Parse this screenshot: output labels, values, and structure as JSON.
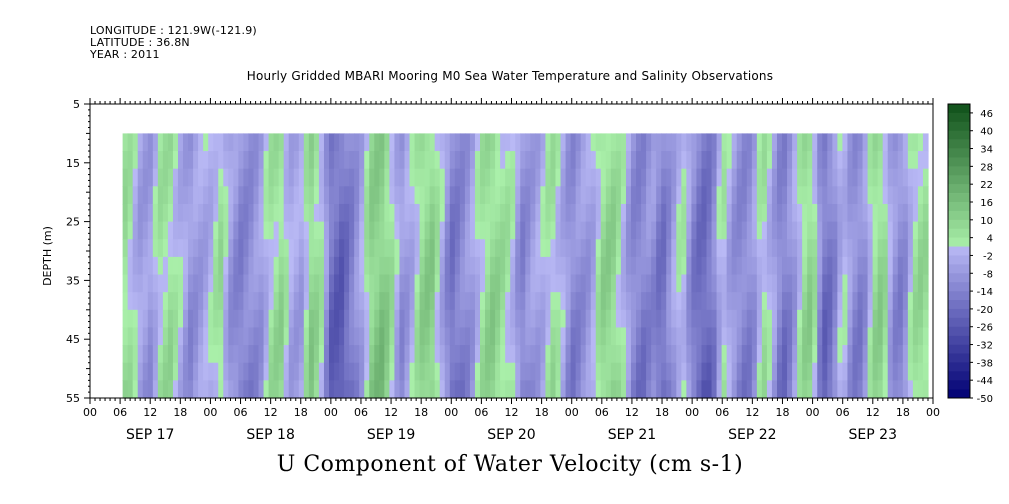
{
  "header": {
    "longitude": "LONGITUDE : 121.9W(-121.9)",
    "latitude": "LATITUDE : 36.8N",
    "year": "YEAR : 2011"
  },
  "title": "Hourly Gridded MBARI Mooring M0 Sea Water Temperature and Salinity Observations",
  "bottom_title": "U Component of Water Velocity (cm s-1)",
  "chart_data": {
    "type": "heatmap",
    "title": "Hourly Gridded MBARI Mooring M0 Sea Water Temperature and Salinity Observations",
    "variable": "U Component of Water Velocity (cm s-1)",
    "ylabel": "DEPTH (m)",
    "y_inverted": true,
    "ylim": [
      5,
      55
    ],
    "y_ticks": [
      5,
      15,
      25,
      35,
      45,
      55
    ],
    "x_hour_labels": [
      "00",
      "06",
      "12",
      "18",
      "00",
      "06",
      "12",
      "18",
      "00",
      "06",
      "12",
      "18",
      "00",
      "06",
      "12",
      "18",
      "00",
      "06",
      "12",
      "18",
      "00",
      "06",
      "12",
      "18",
      "00",
      "06",
      "12",
      "18",
      "00"
    ],
    "x_day_labels": [
      "SEP 17",
      "SEP 18",
      "SEP 19",
      "SEP 20",
      "SEP 21",
      "SEP 22",
      "SEP 23"
    ],
    "x_range_hours": [
      0,
      168
    ],
    "data_x_range_hours": [
      6.5,
      167
    ],
    "data_depth_range": [
      10,
      55
    ],
    "colorbar": {
      "labels": [
        46,
        40,
        34,
        28,
        22,
        16,
        10,
        4,
        -2,
        -8,
        -14,
        -20,
        -26,
        -32,
        -38,
        -44,
        -50
      ],
      "range": [
        -50,
        49
      ],
      "step": 3
    },
    "approx_velocity_by_hour": [
      [
        6,
        8
      ],
      [
        8,
        4
      ],
      [
        10,
        -6
      ],
      [
        12,
        -8
      ],
      [
        14,
        4
      ],
      [
        16,
        6
      ],
      [
        18,
        -2
      ],
      [
        20,
        -10
      ],
      [
        22,
        -6
      ],
      [
        24,
        -2
      ],
      [
        26,
        6
      ],
      [
        28,
        -8
      ],
      [
        30,
        -14
      ],
      [
        32,
        -12
      ],
      [
        34,
        -8
      ],
      [
        36,
        4
      ],
      [
        38,
        8
      ],
      [
        40,
        -4
      ],
      [
        42,
        -6
      ],
      [
        44,
        10
      ],
      [
        46,
        4
      ],
      [
        48,
        -20
      ],
      [
        50,
        -24
      ],
      [
        52,
        -16
      ],
      [
        54,
        -6
      ],
      [
        56,
        10
      ],
      [
        58,
        14
      ],
      [
        60,
        6
      ],
      [
        62,
        -10
      ],
      [
        64,
        -4
      ],
      [
        66,
        8
      ],
      [
        68,
        12
      ],
      [
        70,
        -2
      ],
      [
        72,
        -18
      ],
      [
        74,
        -14
      ],
      [
        76,
        -8
      ],
      [
        78,
        4
      ],
      [
        80,
        10
      ],
      [
        82,
        6
      ],
      [
        84,
        2
      ],
      [
        86,
        -14
      ],
      [
        88,
        -8
      ],
      [
        90,
        -4
      ],
      [
        92,
        6
      ],
      [
        94,
        -2
      ],
      [
        96,
        -14
      ],
      [
        98,
        -10
      ],
      [
        100,
        -6
      ],
      [
        102,
        8
      ],
      [
        104,
        10
      ],
      [
        106,
        2
      ],
      [
        108,
        -12
      ],
      [
        110,
        -16
      ],
      [
        112,
        -10
      ],
      [
        114,
        -20
      ],
      [
        116,
        -8
      ],
      [
        118,
        4
      ],
      [
        120,
        -14
      ],
      [
        122,
        -22
      ],
      [
        124,
        -18
      ],
      [
        126,
        4
      ],
      [
        128,
        -8
      ],
      [
        130,
        -14
      ],
      [
        132,
        -12
      ],
      [
        134,
        6
      ],
      [
        136,
        -4
      ],
      [
        138,
        -18
      ],
      [
        140,
        -10
      ],
      [
        142,
        6
      ],
      [
        144,
        10
      ],
      [
        146,
        -20
      ],
      [
        148,
        -16
      ],
      [
        150,
        2
      ],
      [
        152,
        -12
      ],
      [
        154,
        -14
      ],
      [
        156,
        6
      ],
      [
        158,
        10
      ],
      [
        160,
        -10
      ],
      [
        162,
        -14
      ],
      [
        164,
        4
      ],
      [
        166,
        8
      ],
      [
        167,
        4
      ]
    ]
  }
}
